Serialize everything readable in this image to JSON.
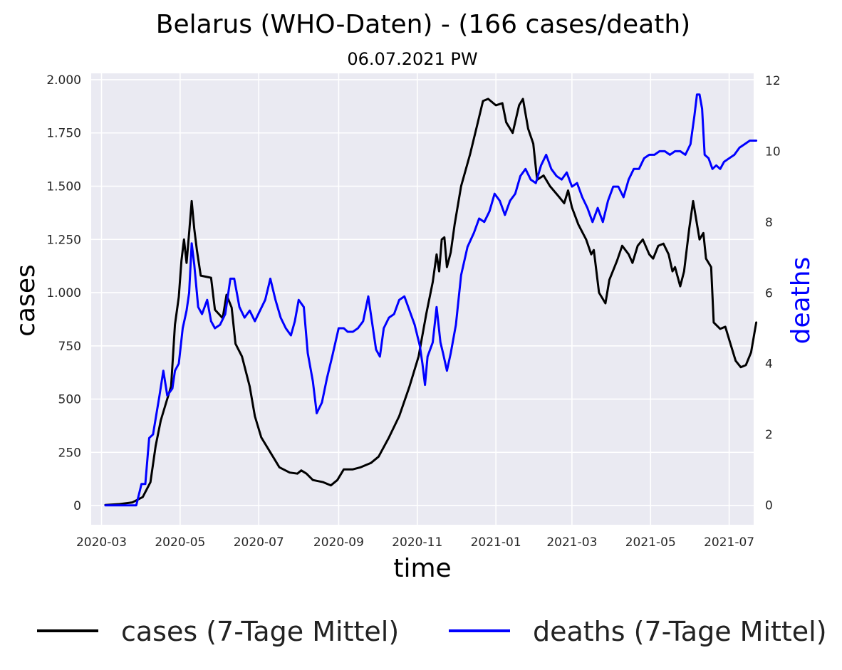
{
  "chart_data": {
    "type": "line",
    "title": "Belarus (WHO-Daten) - (166 cases/death)",
    "subtitle": "06.07.2021 PW",
    "xlabel": "time",
    "ylabel": "cases",
    "y2label": "deaths",
    "xlim": [
      "2020-02-22",
      "2021-07-20"
    ],
    "ylim": [
      -90,
      2030
    ],
    "y2lim": [
      -0.55,
      12.2
    ],
    "x_ticks": [
      "2020-03",
      "2020-05",
      "2020-07",
      "2020-09",
      "2020-11",
      "2021-01",
      "2021-03",
      "2021-05",
      "2021-07"
    ],
    "y_ticks": [
      {
        "value": 0,
        "label": "0"
      },
      {
        "value": 250,
        "label": "250"
      },
      {
        "value": 500,
        "label": "500"
      },
      {
        "value": 750,
        "label": "750"
      },
      {
        "value": 1000,
        "label": "1.000"
      },
      {
        "value": 1250,
        "label": "1.250"
      },
      {
        "value": 1500,
        "label": "1.500"
      },
      {
        "value": 1750,
        "label": "1.750"
      },
      {
        "value": 2000,
        "label": "2.000"
      }
    ],
    "y2_ticks": [
      {
        "value": 0,
        "label": "0"
      },
      {
        "value": 2,
        "label": "2"
      },
      {
        "value": 4,
        "label": "4"
      },
      {
        "value": 6,
        "label": "6"
      },
      {
        "value": 8,
        "label": "8"
      },
      {
        "value": 10,
        "label": "10"
      },
      {
        "value": 12,
        "label": "12"
      }
    ],
    "grid": true,
    "legend_position": "bottom",
    "series": [
      {
        "name": "cases (7-Tage Mittel)",
        "axis": "left",
        "color": "#000000",
        "points": [
          [
            "2020-03-04",
            3
          ],
          [
            "2020-03-15",
            7
          ],
          [
            "2020-03-25",
            15
          ],
          [
            "2020-04-02",
            40
          ],
          [
            "2020-04-08",
            110
          ],
          [
            "2020-04-12",
            280
          ],
          [
            "2020-04-16",
            400
          ],
          [
            "2020-04-20",
            480
          ],
          [
            "2020-04-24",
            560
          ],
          [
            "2020-04-27",
            850
          ],
          [
            "2020-04-30",
            980
          ],
          [
            "2020-05-02",
            1150
          ],
          [
            "2020-05-04",
            1250
          ],
          [
            "2020-05-06",
            1140
          ],
          [
            "2020-05-08",
            1280
          ],
          [
            "2020-05-10",
            1430
          ],
          [
            "2020-05-12",
            1300
          ],
          [
            "2020-05-14",
            1200
          ],
          [
            "2020-05-17",
            1080
          ],
          [
            "2020-05-25",
            1070
          ],
          [
            "2020-05-28",
            920
          ],
          [
            "2020-06-03",
            880
          ],
          [
            "2020-06-06",
            990
          ],
          [
            "2020-06-10",
            930
          ],
          [
            "2020-06-13",
            760
          ],
          [
            "2020-06-18",
            700
          ],
          [
            "2020-06-24",
            560
          ],
          [
            "2020-06-28",
            420
          ],
          [
            "2020-07-03",
            320
          ],
          [
            "2020-07-10",
            250
          ],
          [
            "2020-07-17",
            180
          ],
          [
            "2020-07-25",
            155
          ],
          [
            "2020-07-31",
            150
          ],
          [
            "2020-08-03",
            165
          ],
          [
            "2020-08-07",
            150
          ],
          [
            "2020-08-12",
            120
          ],
          [
            "2020-08-20",
            110
          ],
          [
            "2020-08-26",
            95
          ],
          [
            "2020-08-31",
            120
          ],
          [
            "2020-09-05",
            170
          ],
          [
            "2020-09-12",
            170
          ],
          [
            "2020-09-18",
            180
          ],
          [
            "2020-09-26",
            200
          ],
          [
            "2020-10-02",
            230
          ],
          [
            "2020-10-10",
            320
          ],
          [
            "2020-10-18",
            420
          ],
          [
            "2020-10-26",
            560
          ],
          [
            "2020-11-02",
            700
          ],
          [
            "2020-11-08",
            900
          ],
          [
            "2020-11-13",
            1050
          ],
          [
            "2020-11-16",
            1180
          ],
          [
            "2020-11-18",
            1100
          ],
          [
            "2020-11-20",
            1250
          ],
          [
            "2020-11-22",
            1260
          ],
          [
            "2020-11-24",
            1120
          ],
          [
            "2020-11-27",
            1190
          ],
          [
            "2020-11-30",
            1320
          ],
          [
            "2020-12-05",
            1500
          ],
          [
            "2020-12-12",
            1650
          ],
          [
            "2020-12-18",
            1800
          ],
          [
            "2020-12-22",
            1900
          ],
          [
            "2020-12-26",
            1910
          ],
          [
            "2021-01-01",
            1880
          ],
          [
            "2021-01-06",
            1890
          ],
          [
            "2021-01-09",
            1800
          ],
          [
            "2021-01-14",
            1750
          ],
          [
            "2021-01-19",
            1880
          ],
          [
            "2021-01-22",
            1910
          ],
          [
            "2021-01-26",
            1770
          ],
          [
            "2021-01-30",
            1700
          ],
          [
            "2021-02-02",
            1530
          ],
          [
            "2021-02-07",
            1550
          ],
          [
            "2021-02-12",
            1500
          ],
          [
            "2021-02-19",
            1450
          ],
          [
            "2021-02-23",
            1420
          ],
          [
            "2021-02-26",
            1480
          ],
          [
            "2021-03-01",
            1400
          ],
          [
            "2021-03-06",
            1320
          ],
          [
            "2021-03-12",
            1250
          ],
          [
            "2021-03-16",
            1180
          ],
          [
            "2021-03-18",
            1200
          ],
          [
            "2021-03-22",
            1000
          ],
          [
            "2021-03-27",
            950
          ],
          [
            "2021-03-30",
            1060
          ],
          [
            "2021-04-05",
            1150
          ],
          [
            "2021-04-09",
            1220
          ],
          [
            "2021-04-14",
            1180
          ],
          [
            "2021-04-17",
            1140
          ],
          [
            "2021-04-21",
            1220
          ],
          [
            "2021-04-25",
            1250
          ],
          [
            "2021-04-30",
            1180
          ],
          [
            "2021-05-03",
            1160
          ],
          [
            "2021-05-07",
            1220
          ],
          [
            "2021-05-11",
            1230
          ],
          [
            "2021-05-15",
            1180
          ],
          [
            "2021-05-18",
            1100
          ],
          [
            "2021-05-20",
            1120
          ],
          [
            "2021-05-24",
            1030
          ],
          [
            "2021-05-27",
            1100
          ],
          [
            "2021-05-31",
            1300
          ],
          [
            "2021-06-03",
            1430
          ],
          [
            "2021-06-08",
            1250
          ],
          [
            "2021-06-11",
            1280
          ],
          [
            "2021-06-13",
            1160
          ],
          [
            "2021-06-17",
            1120
          ],
          [
            "2021-06-19",
            860
          ],
          [
            "2021-06-24",
            830
          ],
          [
            "2021-06-28",
            840
          ],
          [
            "2021-07-02",
            760
          ],
          [
            "2021-07-06",
            680
          ],
          [
            "2021-07-10",
            650
          ],
          [
            "2021-07-14",
            660
          ],
          [
            "2021-07-18",
            720
          ],
          [
            "2021-07-22",
            860
          ]
        ]
      },
      {
        "name": "deaths (7-Tage Mittel)",
        "axis": "right",
        "color": "#0000ff",
        "points": [
          [
            "2020-03-04",
            0
          ],
          [
            "2020-03-28",
            0
          ],
          [
            "2020-04-01",
            0.6
          ],
          [
            "2020-04-04",
            0.6
          ],
          [
            "2020-04-07",
            1.9
          ],
          [
            "2020-04-10",
            2.0
          ],
          [
            "2020-04-15",
            3.1
          ],
          [
            "2020-04-18",
            3.8
          ],
          [
            "2020-04-21",
            3.1
          ],
          [
            "2020-04-25",
            3.3
          ],
          [
            "2020-04-27",
            3.8
          ],
          [
            "2020-04-30",
            4.0
          ],
          [
            "2020-05-03",
            5.0
          ],
          [
            "2020-05-06",
            5.5
          ],
          [
            "2020-05-08",
            6.0
          ],
          [
            "2020-05-10",
            7.4
          ],
          [
            "2020-05-12",
            6.8
          ],
          [
            "2020-05-15",
            5.6
          ],
          [
            "2020-05-18",
            5.4
          ],
          [
            "2020-05-22",
            5.8
          ],
          [
            "2020-05-25",
            5.2
          ],
          [
            "2020-05-28",
            5.0
          ],
          [
            "2020-06-01",
            5.1
          ],
          [
            "2020-06-05",
            5.4
          ],
          [
            "2020-06-09",
            6.4
          ],
          [
            "2020-06-12",
            6.4
          ],
          [
            "2020-06-16",
            5.6
          ],
          [
            "2020-06-20",
            5.3
          ],
          [
            "2020-06-24",
            5.5
          ],
          [
            "2020-06-28",
            5.2
          ],
          [
            "2020-07-02",
            5.5
          ],
          [
            "2020-07-06",
            5.8
          ],
          [
            "2020-07-10",
            6.4
          ],
          [
            "2020-07-14",
            5.8
          ],
          [
            "2020-07-18",
            5.3
          ],
          [
            "2020-07-22",
            5.0
          ],
          [
            "2020-07-26",
            4.8
          ],
          [
            "2020-07-29",
            5.2
          ],
          [
            "2020-08-01",
            5.8
          ],
          [
            "2020-08-05",
            5.6
          ],
          [
            "2020-08-08",
            4.3
          ],
          [
            "2020-08-12",
            3.5
          ],
          [
            "2020-08-15",
            2.6
          ],
          [
            "2020-08-19",
            2.9
          ],
          [
            "2020-08-23",
            3.6
          ],
          [
            "2020-08-27",
            4.2
          ],
          [
            "2020-09-01",
            5.0
          ],
          [
            "2020-09-05",
            5.0
          ],
          [
            "2020-09-08",
            4.9
          ],
          [
            "2020-09-12",
            4.9
          ],
          [
            "2020-09-16",
            5.0
          ],
          [
            "2020-09-20",
            5.2
          ],
          [
            "2020-09-24",
            5.9
          ],
          [
            "2020-09-26",
            5.4
          ],
          [
            "2020-09-30",
            4.4
          ],
          [
            "2020-10-03",
            4.2
          ],
          [
            "2020-10-06",
            5.0
          ],
          [
            "2020-10-10",
            5.3
          ],
          [
            "2020-10-14",
            5.4
          ],
          [
            "2020-10-18",
            5.8
          ],
          [
            "2020-10-22",
            5.9
          ],
          [
            "2020-10-26",
            5.5
          ],
          [
            "2020-10-30",
            5.1
          ],
          [
            "2020-11-03",
            4.5
          ],
          [
            "2020-11-05",
            4.0
          ],
          [
            "2020-11-07",
            3.4
          ],
          [
            "2020-11-09",
            4.2
          ],
          [
            "2020-11-13",
            4.6
          ],
          [
            "2020-11-16",
            5.6
          ],
          [
            "2020-11-19",
            4.6
          ],
          [
            "2020-11-21",
            4.3
          ],
          [
            "2020-11-24",
            3.8
          ],
          [
            "2020-11-27",
            4.3
          ],
          [
            "2020-12-01",
            5.1
          ],
          [
            "2020-12-05",
            6.5
          ],
          [
            "2020-12-10",
            7.3
          ],
          [
            "2020-12-15",
            7.7
          ],
          [
            "2020-12-19",
            8.1
          ],
          [
            "2020-12-23",
            8.0
          ],
          [
            "2020-12-27",
            8.3
          ],
          [
            "2020-12-31",
            8.8
          ],
          [
            "2021-01-04",
            8.6
          ],
          [
            "2021-01-08",
            8.2
          ],
          [
            "2021-01-12",
            8.6
          ],
          [
            "2021-01-16",
            8.8
          ],
          [
            "2021-01-20",
            9.3
          ],
          [
            "2021-01-24",
            9.5
          ],
          [
            "2021-01-28",
            9.2
          ],
          [
            "2021-02-01",
            9.1
          ],
          [
            "2021-02-05",
            9.6
          ],
          [
            "2021-02-09",
            9.9
          ],
          [
            "2021-02-13",
            9.5
          ],
          [
            "2021-02-17",
            9.3
          ],
          [
            "2021-02-21",
            9.2
          ],
          [
            "2021-02-25",
            9.4
          ],
          [
            "2021-03-01",
            9.0
          ],
          [
            "2021-03-05",
            9.1
          ],
          [
            "2021-03-09",
            8.7
          ],
          [
            "2021-03-13",
            8.4
          ],
          [
            "2021-03-17",
            8.0
          ],
          [
            "2021-03-21",
            8.4
          ],
          [
            "2021-03-25",
            8.0
          ],
          [
            "2021-03-29",
            8.6
          ],
          [
            "2021-04-02",
            9.0
          ],
          [
            "2021-04-06",
            9.0
          ],
          [
            "2021-04-10",
            8.7
          ],
          [
            "2021-04-14",
            9.2
          ],
          [
            "2021-04-18",
            9.5
          ],
          [
            "2021-04-22",
            9.5
          ],
          [
            "2021-04-26",
            9.8
          ],
          [
            "2021-04-30",
            9.9
          ],
          [
            "2021-05-04",
            9.9
          ],
          [
            "2021-05-08",
            10.0
          ],
          [
            "2021-05-12",
            10.0
          ],
          [
            "2021-05-16",
            9.9
          ],
          [
            "2021-05-20",
            10.0
          ],
          [
            "2021-05-24",
            10.0
          ],
          [
            "2021-05-28",
            9.9
          ],
          [
            "2021-06-01",
            10.2
          ],
          [
            "2021-06-04",
            11.0
          ],
          [
            "2021-06-06",
            11.6
          ],
          [
            "2021-06-08",
            11.6
          ],
          [
            "2021-06-10",
            11.2
          ],
          [
            "2021-06-12",
            9.9
          ],
          [
            "2021-06-15",
            9.8
          ],
          [
            "2021-06-18",
            9.5
          ],
          [
            "2021-06-21",
            9.6
          ],
          [
            "2021-06-24",
            9.5
          ],
          [
            "2021-06-27",
            9.7
          ],
          [
            "2021-07-01",
            9.8
          ],
          [
            "2021-07-05",
            9.9
          ],
          [
            "2021-07-09",
            10.1
          ],
          [
            "2021-07-13",
            10.2
          ],
          [
            "2021-07-17",
            10.3
          ],
          [
            "2021-07-22",
            10.3
          ]
        ]
      }
    ]
  }
}
